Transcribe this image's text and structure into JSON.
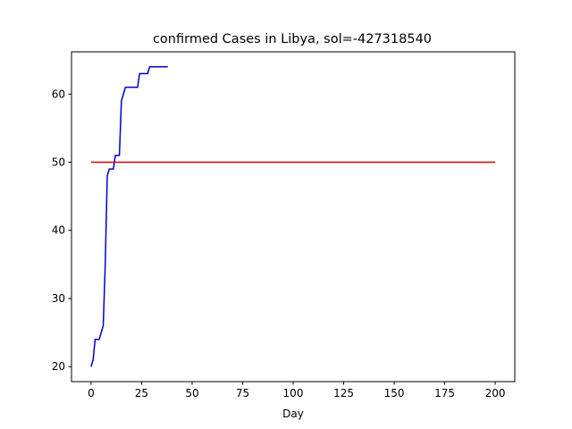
{
  "chart_data": {
    "type": "line",
    "title": "confirmed Cases in Libya, sol=-427318540",
    "xlabel": "Day",
    "ylabel": "",
    "xlim": [
      -9.7,
      209.7
    ],
    "ylim": [
      17.8,
      66.2
    ],
    "x_ticks": [
      0,
      25,
      50,
      75,
      100,
      125,
      150,
      175,
      200
    ],
    "y_ticks": [
      20,
      30,
      40,
      50,
      60
    ],
    "grid": false,
    "legend": "none",
    "series": [
      {
        "color": "#0000cc",
        "x": [
          0,
          1,
          2,
          3,
          4,
          5,
          6,
          7,
          8,
          9,
          10,
          11,
          12,
          13,
          14,
          15,
          16,
          17,
          18,
          19,
          20,
          21,
          22,
          23,
          24,
          25,
          26,
          27,
          28,
          29,
          30,
          31,
          32,
          33,
          34,
          35,
          36,
          37,
          38
        ],
        "y": [
          20,
          21,
          24,
          24,
          24,
          25,
          26,
          35,
          48,
          49,
          49,
          49,
          51,
          51,
          51,
          59,
          60,
          61,
          61,
          61,
          61,
          61,
          61,
          61,
          63,
          63,
          63,
          63,
          63,
          64,
          64,
          64,
          64,
          64,
          64,
          64,
          64,
          64,
          64
        ]
      },
      {
        "color": "#dd0000",
        "x": [
          0,
          200
        ],
        "y": [
          50,
          50
        ]
      }
    ]
  }
}
